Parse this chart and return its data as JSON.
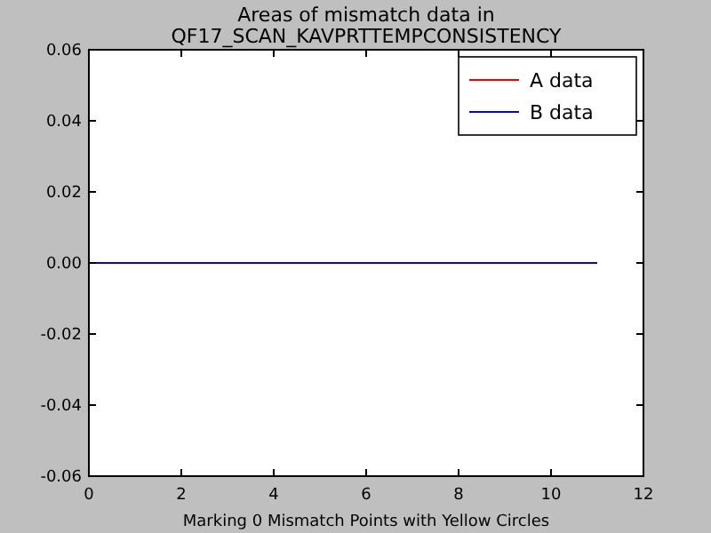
{
  "chart_data": {
    "type": "line",
    "title": "Areas of mismatch data in\nQF17_SCAN_KAVPRTTEMPCONSISTENCY",
    "xlabel": "Marking 0 Mismatch Points with Yellow Circles",
    "x": [
      0,
      11
    ],
    "series": [
      {
        "name": "A data",
        "color": "#ff0000",
        "values": [
          null,
          null
        ]
      },
      {
        "name": "B data",
        "color": "#0000ff",
        "values": [
          0,
          0
        ]
      }
    ],
    "xlim": [
      0,
      12
    ],
    "xticks": [
      0,
      2,
      4,
      6,
      8,
      10,
      12
    ],
    "ylim": [
      -0.06,
      0.06
    ],
    "yticks": [
      -0.06,
      -0.04,
      -0.02,
      {
        "value": 0,
        "label": "0.00"
      },
      0.02,
      0.04,
      0.06
    ],
    "grid": false,
    "legend": "top right",
    "marker": "none",
    "line_style": "solid"
  }
}
